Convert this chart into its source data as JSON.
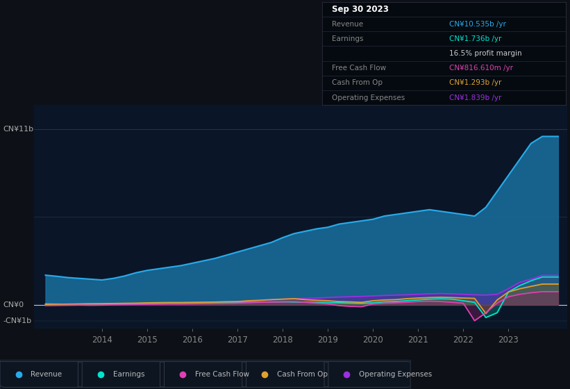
{
  "background_color": "#0d1117",
  "chart_bg_color": "#0a1628",
  "ylim": [
    -1500000000.0,
    12500000000.0
  ],
  "xlim": [
    2012.5,
    2024.3
  ],
  "x_ticks": [
    2014,
    2015,
    2016,
    2017,
    2018,
    2019,
    2020,
    2021,
    2022,
    2023
  ],
  "legend": [
    {
      "label": "Revenue",
      "color": "#29abea"
    },
    {
      "label": "Earnings",
      "color": "#00e5cc"
    },
    {
      "label": "Free Cash Flow",
      "color": "#e040b0"
    },
    {
      "label": "Cash From Op",
      "color": "#e0a030"
    },
    {
      "label": "Operating Expenses",
      "color": "#9b30e0"
    }
  ],
  "revenue": {
    "x": [
      2012.75,
      2013.0,
      2013.25,
      2013.5,
      2013.75,
      2014.0,
      2014.25,
      2014.5,
      2014.75,
      2015.0,
      2015.25,
      2015.5,
      2015.75,
      2016.0,
      2016.25,
      2016.5,
      2016.75,
      2017.0,
      2017.25,
      2017.5,
      2017.75,
      2018.0,
      2018.25,
      2018.5,
      2018.75,
      2019.0,
      2019.25,
      2019.5,
      2019.75,
      2020.0,
      2020.25,
      2020.5,
      2020.75,
      2021.0,
      2021.25,
      2021.5,
      2021.75,
      2022.0,
      2022.25,
      2022.5,
      2022.75,
      2023.0,
      2023.25,
      2023.5,
      2023.75,
      2024.1
    ],
    "y": [
      1850000000.0,
      1780000000.0,
      1700000000.0,
      1650000000.0,
      1600000000.0,
      1550000000.0,
      1650000000.0,
      1800000000.0,
      2000000000.0,
      2150000000.0,
      2250000000.0,
      2350000000.0,
      2450000000.0,
      2600000000.0,
      2750000000.0,
      2900000000.0,
      3100000000.0,
      3300000000.0,
      3500000000.0,
      3700000000.0,
      3900000000.0,
      4200000000.0,
      4450000000.0,
      4600000000.0,
      4750000000.0,
      4850000000.0,
      5050000000.0,
      5150000000.0,
      5250000000.0,
      5350000000.0,
      5550000000.0,
      5650000000.0,
      5750000000.0,
      5850000000.0,
      5950000000.0,
      5850000000.0,
      5750000000.0,
      5650000000.0,
      5550000000.0,
      6100000000.0,
      7100000000.0,
      8100000000.0,
      9100000000.0,
      10100000000.0,
      10535000000.0,
      10535000000.0
    ]
  },
  "earnings": {
    "x": [
      2012.75,
      2013.0,
      2013.25,
      2013.5,
      2013.75,
      2014.0,
      2014.25,
      2014.5,
      2014.75,
      2015.0,
      2015.25,
      2015.5,
      2015.75,
      2016.0,
      2016.25,
      2016.5,
      2016.75,
      2017.0,
      2017.25,
      2017.5,
      2017.75,
      2018.0,
      2018.25,
      2018.5,
      2018.75,
      2019.0,
      2019.25,
      2019.5,
      2019.75,
      2020.0,
      2020.25,
      2020.5,
      2020.75,
      2021.0,
      2021.25,
      2021.5,
      2021.75,
      2022.0,
      2022.25,
      2022.5,
      2022.75,
      2023.0,
      2023.25,
      2023.5,
      2023.75,
      2024.1
    ],
    "y": [
      50000000.0,
      40000000.0,
      30000000.0,
      40000000.0,
      50000000.0,
      40000000.0,
      50000000.0,
      60000000.0,
      70000000.0,
      70000000.0,
      80000000.0,
      90000000.0,
      90000000.0,
      100000000.0,
      110000000.0,
      120000000.0,
      130000000.0,
      140000000.0,
      150000000.0,
      160000000.0,
      170000000.0,
      180000000.0,
      170000000.0,
      160000000.0,
      150000000.0,
      130000000.0,
      120000000.0,
      100000000.0,
      80000000.0,
      120000000.0,
      180000000.0,
      200000000.0,
      250000000.0,
      300000000.0,
      350000000.0,
      370000000.0,
      350000000.0,
      250000000.0,
      150000000.0,
      -800000000.0,
      -500000000.0,
      800000000.0,
      1200000000.0,
      1500000000.0,
      1736000000.0,
      1736000000.0
    ]
  },
  "free_cash_flow": {
    "x": [
      2012.75,
      2013.0,
      2013.25,
      2013.5,
      2013.75,
      2014.0,
      2014.25,
      2014.5,
      2014.75,
      2015.0,
      2015.25,
      2015.5,
      2015.75,
      2016.0,
      2016.25,
      2016.5,
      2016.75,
      2017.0,
      2017.25,
      2017.5,
      2017.75,
      2018.0,
      2018.25,
      2018.5,
      2018.75,
      2019.0,
      2019.25,
      2019.5,
      2019.75,
      2020.0,
      2020.25,
      2020.5,
      2020.75,
      2021.0,
      2021.25,
      2021.5,
      2021.75,
      2022.0,
      2022.25,
      2022.5,
      2022.75,
      2023.0,
      2023.25,
      2023.5,
      2023.75,
      2024.1
    ],
    "y": [
      -50000000.0,
      -40000000.0,
      -30000000.0,
      -20000000.0,
      -30000000.0,
      -20000000.0,
      0.0,
      10000000.0,
      20000000.0,
      30000000.0,
      40000000.0,
      50000000.0,
      50000000.0,
      60000000.0,
      70000000.0,
      80000000.0,
      90000000.0,
      100000000.0,
      130000000.0,
      150000000.0,
      170000000.0,
      180000000.0,
      200000000.0,
      150000000.0,
      100000000.0,
      50000000.0,
      -50000000.0,
      -100000000.0,
      -120000000.0,
      50000000.0,
      100000000.0,
      120000000.0,
      150000000.0,
      200000000.0,
      220000000.0,
      200000000.0,
      150000000.0,
      100000000.0,
      -1000000000.0,
      -500000000.0,
      100000000.0,
      500000000.0,
      650000000.0,
      750000000.0,
      816600000.0,
      816600000.0
    ]
  },
  "cash_from_op": {
    "x": [
      2012.75,
      2013.0,
      2013.25,
      2013.5,
      2013.75,
      2014.0,
      2014.25,
      2014.5,
      2014.75,
      2015.0,
      2015.25,
      2015.5,
      2015.75,
      2016.0,
      2016.25,
      2016.5,
      2016.75,
      2017.0,
      2017.25,
      2017.5,
      2017.75,
      2018.0,
      2018.25,
      2018.5,
      2018.75,
      2019.0,
      2019.25,
      2019.5,
      2019.75,
      2020.0,
      2020.25,
      2020.5,
      2020.75,
      2021.0,
      2021.25,
      2021.5,
      2021.75,
      2022.0,
      2022.25,
      2022.5,
      2022.75,
      2023.0,
      2023.25,
      2023.5,
      2023.75,
      2024.1
    ],
    "y": [
      20000000.0,
      30000000.0,
      40000000.0,
      50000000.0,
      60000000.0,
      70000000.0,
      80000000.0,
      90000000.0,
      100000000.0,
      120000000.0,
      130000000.0,
      140000000.0,
      140000000.0,
      150000000.0,
      160000000.0,
      170000000.0,
      190000000.0,
      200000000.0,
      250000000.0,
      280000000.0,
      320000000.0,
      350000000.0,
      380000000.0,
      320000000.0,
      280000000.0,
      250000000.0,
      200000000.0,
      180000000.0,
      150000000.0,
      250000000.0,
      300000000.0,
      320000000.0,
      380000000.0,
      420000000.0,
      450000000.0,
      470000000.0,
      450000000.0,
      420000000.0,
      400000000.0,
      -550000000.0,
      300000000.0,
      800000000.0,
      1000000000.0,
      1150000000.0,
      1293000000.0,
      1293000000.0
    ]
  },
  "operating_expenses": {
    "x": [
      2012.75,
      2013.0,
      2013.25,
      2013.5,
      2013.75,
      2014.0,
      2014.25,
      2014.5,
      2014.75,
      2015.0,
      2015.25,
      2015.5,
      2015.75,
      2016.0,
      2016.25,
      2016.5,
      2016.75,
      2017.0,
      2017.25,
      2017.5,
      2017.75,
      2018.0,
      2018.25,
      2018.5,
      2018.75,
      2019.0,
      2019.25,
      2019.5,
      2019.75,
      2020.0,
      2020.25,
      2020.5,
      2020.75,
      2021.0,
      2021.25,
      2021.5,
      2021.75,
      2022.0,
      2022.25,
      2022.5,
      2022.75,
      2023.0,
      2023.25,
      2023.5,
      2023.75,
      2024.1
    ],
    "y": [
      10000000.0,
      15000000.0,
      20000000.0,
      25000000.0,
      30000000.0,
      35000000.0,
      40000000.0,
      50000000.0,
      60000000.0,
      70000000.0,
      80000000.0,
      90000000.0,
      100000000.0,
      110000000.0,
      120000000.0,
      140000000.0,
      160000000.0,
      180000000.0,
      220000000.0,
      260000000.0,
      300000000.0,
      350000000.0,
      380000000.0,
      400000000.0,
      420000000.0,
      450000000.0,
      480000000.0,
      500000000.0,
      520000000.0,
      550000000.0,
      580000000.0,
      600000000.0,
      620000000.0,
      650000000.0,
      680000000.0,
      700000000.0,
      680000000.0,
      650000000.0,
      620000000.0,
      600000000.0,
      650000000.0,
      1000000000.0,
      1400000000.0,
      1600000000.0,
      1839000000.0,
      1839000000.0
    ]
  }
}
